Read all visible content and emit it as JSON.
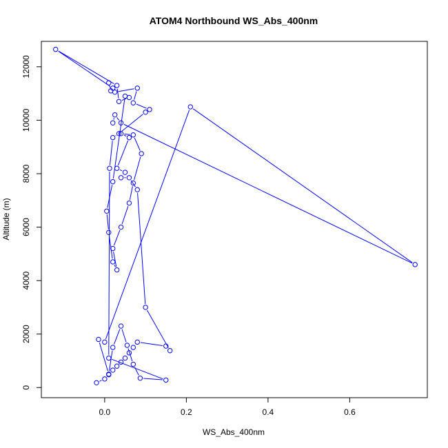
{
  "chart_data": {
    "type": "line",
    "title": "ATOM4 Northbound WS_Abs_400nm",
    "xlabel": "WS_Abs_400nm",
    "ylabel": "Altitude (m)",
    "xlim": [
      -0.155,
      0.79
    ],
    "ylim": [
      -380,
      12950
    ],
    "x_ticks": [
      0.0,
      0.2,
      0.4,
      0.6
    ],
    "x_tick_labels": [
      "0.0",
      "0.2",
      "0.4",
      "0.6"
    ],
    "y_ticks": [
      0,
      2000,
      4000,
      6000,
      8000,
      10000,
      12000
    ],
    "y_tick_labels": [
      "0",
      "2000",
      "4000",
      "6000",
      "8000",
      "10000",
      "12000"
    ],
    "series_color": "#0000ff",
    "grid": false,
    "series": [
      {
        "x": [
          -0.02,
          0.0,
          0.01,
          0.02,
          0.03,
          0.04,
          0.05,
          0.06,
          0.07,
          0.08,
          0.15,
          0.16,
          0.1,
          0.08,
          0.06,
          0.04,
          0.05,
          0.03,
          0.06,
          0.04,
          0.07,
          0.09,
          0.07,
          0.06,
          0.04,
          0.02,
          0.03,
          0.02,
          0.01,
          0.005,
          0.02,
          0.05,
          0.06,
          0.035,
          0.03,
          -0.12,
          0.02,
          0.01,
          0.015,
          0.025,
          0.08,
          0.07,
          0.11,
          0.1,
          0.035,
          0.02,
          0.012,
          0.01,
          0.15,
          0.087,
          0.07,
          0.055,
          0.04,
          0.02,
          0.01,
          -0.015,
          0.0,
          0.21,
          0.76,
          0.04,
          0.025,
          0.02
        ],
        "y": [
          180,
          320,
          480,
          650,
          800,
          950,
          1100,
          1300,
          1500,
          1700,
          1550,
          1380,
          3000,
          7400,
          7850,
          7850,
          8050,
          8200,
          9350,
          9500,
          9450,
          8750,
          7650,
          6900,
          6000,
          5200,
          4400,
          4700,
          5800,
          6600,
          7700,
          10900,
          10850,
          10700,
          11300,
          12650,
          11200,
          11400,
          11100,
          11050,
          11200,
          10650,
          10400,
          10300,
          9500,
          9350,
          8200,
          1100,
          280,
          350,
          870,
          1580,
          2300,
          1500,
          500,
          1800,
          1700,
          10500,
          4600,
          9900,
          10200,
          9900
        ]
      }
    ]
  }
}
